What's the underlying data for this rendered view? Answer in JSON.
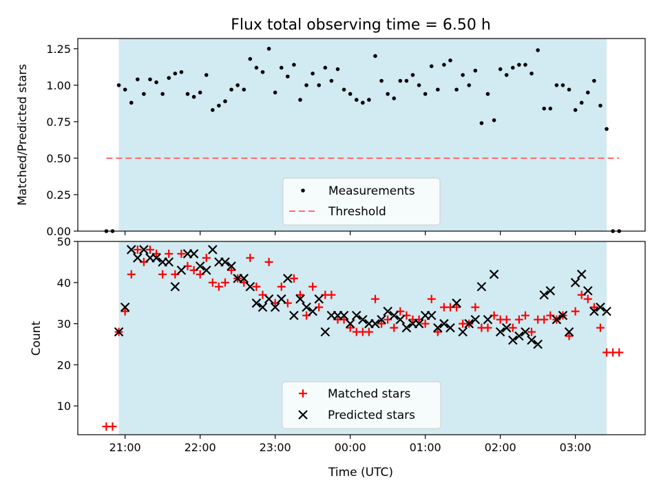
{
  "title": "Flux total observing time = 6.50 h",
  "xlabel": "Time (UTC)",
  "x_ticks": [
    "21:00",
    "22:00",
    "23:00",
    "00:00",
    "01:00",
    "02:00",
    "03:00"
  ],
  "colors": {
    "band": "#add8e6",
    "threshold": "#ff6b6b",
    "matched": "#ff0000",
    "predicted": "#000000"
  },
  "chart_data": [
    {
      "type": "scatter",
      "ylabel": "Matched/Predicted stars",
      "xlim_hours": [
        20.37,
        3.93
      ],
      "ylim": [
        0,
        1.32
      ],
      "y_ticks": [
        "0.00",
        "0.25",
        "0.50",
        "0.75",
        "1.00",
        "1.25"
      ],
      "y_tick_values": [
        0,
        0.25,
        0.5,
        0.75,
        1.0,
        1.25
      ],
      "observing_window": [
        "20:55",
        "03:25"
      ],
      "legend_position": "lower-center",
      "threshold": {
        "name": "Threshold",
        "value": 0.5,
        "x_range": [
          "20:45",
          "03:35"
        ]
      },
      "series": [
        {
          "name": "Measurements",
          "x": [
            "20:45",
            "20:50",
            "20:55",
            "21:00",
            "21:05",
            "21:10",
            "21:15",
            "21:20",
            "21:25",
            "21:30",
            "21:35",
            "21:40",
            "21:45",
            "21:50",
            "21:55",
            "22:00",
            "22:05",
            "22:10",
            "22:15",
            "22:20",
            "22:25",
            "22:30",
            "22:35",
            "22:40",
            "22:45",
            "22:50",
            "22:55",
            "23:00",
            "23:05",
            "23:10",
            "23:15",
            "23:20",
            "23:25",
            "23:30",
            "23:35",
            "23:40",
            "23:45",
            "23:50",
            "23:55",
            "00:00",
            "00:05",
            "00:10",
            "00:15",
            "00:20",
            "00:25",
            "00:30",
            "00:35",
            "00:40",
            "00:45",
            "00:50",
            "00:55",
            "01:00",
            "01:05",
            "01:10",
            "01:15",
            "01:20",
            "01:25",
            "01:30",
            "01:35",
            "01:40",
            "01:45",
            "01:50",
            "01:55",
            "02:00",
            "02:05",
            "02:10",
            "02:15",
            "02:20",
            "02:25",
            "02:30",
            "02:35",
            "02:40",
            "02:45",
            "02:50",
            "02:55",
            "03:00",
            "03:05",
            "03:10",
            "03:15",
            "03:20",
            "03:25",
            "03:30",
            "03:35"
          ],
          "y": [
            0.0,
            0.0,
            1.0,
            0.97,
            0.88,
            1.04,
            0.94,
            1.04,
            1.02,
            0.94,
            1.05,
            1.08,
            1.09,
            0.94,
            0.92,
            0.95,
            1.07,
            0.83,
            0.86,
            0.89,
            0.97,
            1.0,
            0.97,
            1.18,
            1.12,
            1.09,
            1.25,
            0.95,
            1.12,
            1.06,
            1.14,
            0.9,
            1.0,
            1.08,
            1.0,
            1.12,
            1.03,
            1.11,
            0.97,
            0.94,
            0.9,
            0.88,
            0.9,
            1.2,
            1.03,
            0.94,
            0.91,
            1.03,
            1.03,
            1.07,
            1.0,
            0.94,
            1.13,
            0.97,
            1.14,
            1.17,
            0.97,
            1.07,
            1.0,
            1.1,
            0.74,
            0.94,
            0.76,
            1.11,
            1.07,
            1.12,
            1.14,
            1.14,
            1.08,
            1.24,
            0.84,
            0.84,
            1.0,
            1.0,
            0.97,
            0.83,
            0.88,
            0.95,
            1.03,
            0.86,
            0.7,
            0.0,
            0.0
          ]
        }
      ]
    },
    {
      "type": "scatter",
      "ylabel": "Count",
      "xlim_hours": [
        20.37,
        3.93
      ],
      "ylim": [
        3,
        50
      ],
      "y_ticks": [
        "10",
        "20",
        "30",
        "40",
        "50"
      ],
      "y_tick_values": [
        10,
        20,
        30,
        40,
        50
      ],
      "observing_window": [
        "20:55",
        "03:25"
      ],
      "legend_position": "lower-center",
      "series": [
        {
          "name": "Matched stars",
          "marker": "plus",
          "x": [
            "20:45",
            "20:50",
            "20:55",
            "21:00",
            "21:05",
            "21:10",
            "21:15",
            "21:20",
            "21:25",
            "21:30",
            "21:35",
            "21:40",
            "21:45",
            "21:50",
            "21:55",
            "22:00",
            "22:05",
            "22:10",
            "22:15",
            "22:20",
            "22:25",
            "22:30",
            "22:35",
            "22:40",
            "22:45",
            "22:50",
            "22:55",
            "23:00",
            "23:05",
            "23:10",
            "23:15",
            "23:20",
            "23:25",
            "23:30",
            "23:35",
            "23:40",
            "23:45",
            "23:50",
            "23:55",
            "00:00",
            "00:05",
            "00:10",
            "00:15",
            "00:20",
            "00:25",
            "00:30",
            "00:35",
            "00:40",
            "00:45",
            "00:50",
            "00:55",
            "01:00",
            "01:05",
            "01:10",
            "01:15",
            "01:20",
            "01:25",
            "01:30",
            "01:35",
            "01:40",
            "01:45",
            "01:50",
            "01:55",
            "02:00",
            "02:05",
            "02:10",
            "02:15",
            "02:20",
            "02:25",
            "02:30",
            "02:35",
            "02:40",
            "02:45",
            "02:50",
            "02:55",
            "03:00",
            "03:05",
            "03:10",
            "03:15",
            "03:20",
            "03:25",
            "03:30",
            "03:35"
          ],
          "y": [
            5,
            5,
            28,
            33,
            42,
            48,
            45,
            48,
            47,
            42,
            47,
            42,
            47,
            44,
            43,
            42,
            46,
            40,
            39,
            40,
            43,
            41,
            40,
            46,
            39,
            37,
            45,
            35,
            39,
            35,
            41,
            37,
            32,
            39,
            34,
            37,
            37,
            31,
            31,
            29,
            28,
            28,
            28,
            36,
            30,
            31,
            29,
            33,
            32,
            31,
            31,
            30,
            36,
            28,
            34,
            34,
            34,
            30,
            30,
            34,
            29,
            29,
            32,
            31,
            31,
            29,
            31,
            32,
            28,
            31,
            31,
            32,
            31,
            32,
            27,
            33,
            37,
            36,
            34,
            29,
            23,
            23,
            23
          ]
        },
        {
          "name": "Predicted stars",
          "marker": "x",
          "x": [
            "20:55",
            "21:00",
            "21:05",
            "21:10",
            "21:15",
            "21:20",
            "21:25",
            "21:30",
            "21:35",
            "21:40",
            "21:45",
            "21:50",
            "21:55",
            "22:00",
            "22:05",
            "22:10",
            "22:15",
            "22:20",
            "22:25",
            "22:30",
            "22:35",
            "22:40",
            "22:45",
            "22:50",
            "22:55",
            "23:00",
            "23:05",
            "23:10",
            "23:15",
            "23:20",
            "23:25",
            "23:30",
            "23:35",
            "23:40",
            "23:45",
            "23:50",
            "23:55",
            "00:00",
            "00:05",
            "00:10",
            "00:15",
            "00:20",
            "00:25",
            "00:30",
            "00:35",
            "00:40",
            "00:45",
            "00:50",
            "00:55",
            "01:00",
            "01:05",
            "01:10",
            "01:15",
            "01:20",
            "01:25",
            "01:30",
            "01:35",
            "01:40",
            "01:45",
            "01:50",
            "01:55",
            "02:00",
            "02:05",
            "02:10",
            "02:15",
            "02:20",
            "02:25",
            "02:30",
            "02:35",
            "02:40",
            "02:45",
            "02:50",
            "02:55",
            "03:00",
            "03:05",
            "03:10",
            "03:15",
            "03:20",
            "03:25"
          ],
          "y": [
            28,
            34,
            48,
            46,
            48,
            46,
            46,
            45,
            45,
            39,
            43,
            47,
            47,
            44,
            43,
            48,
            45,
            45,
            44,
            41,
            41,
            39,
            35,
            34,
            36,
            34,
            36,
            41,
            32,
            36,
            34,
            33,
            36,
            28,
            32,
            32,
            32,
            30,
            32,
            31,
            30,
            30,
            31,
            33,
            32,
            31,
            29,
            30,
            30,
            32,
            32,
            29,
            30,
            29,
            35,
            28,
            30,
            31,
            39,
            31,
            42,
            28,
            29,
            26,
            27,
            28,
            26,
            25,
            37,
            38,
            31,
            32,
            28,
            40,
            42,
            38,
            33,
            34,
            33
          ]
        }
      ]
    }
  ]
}
